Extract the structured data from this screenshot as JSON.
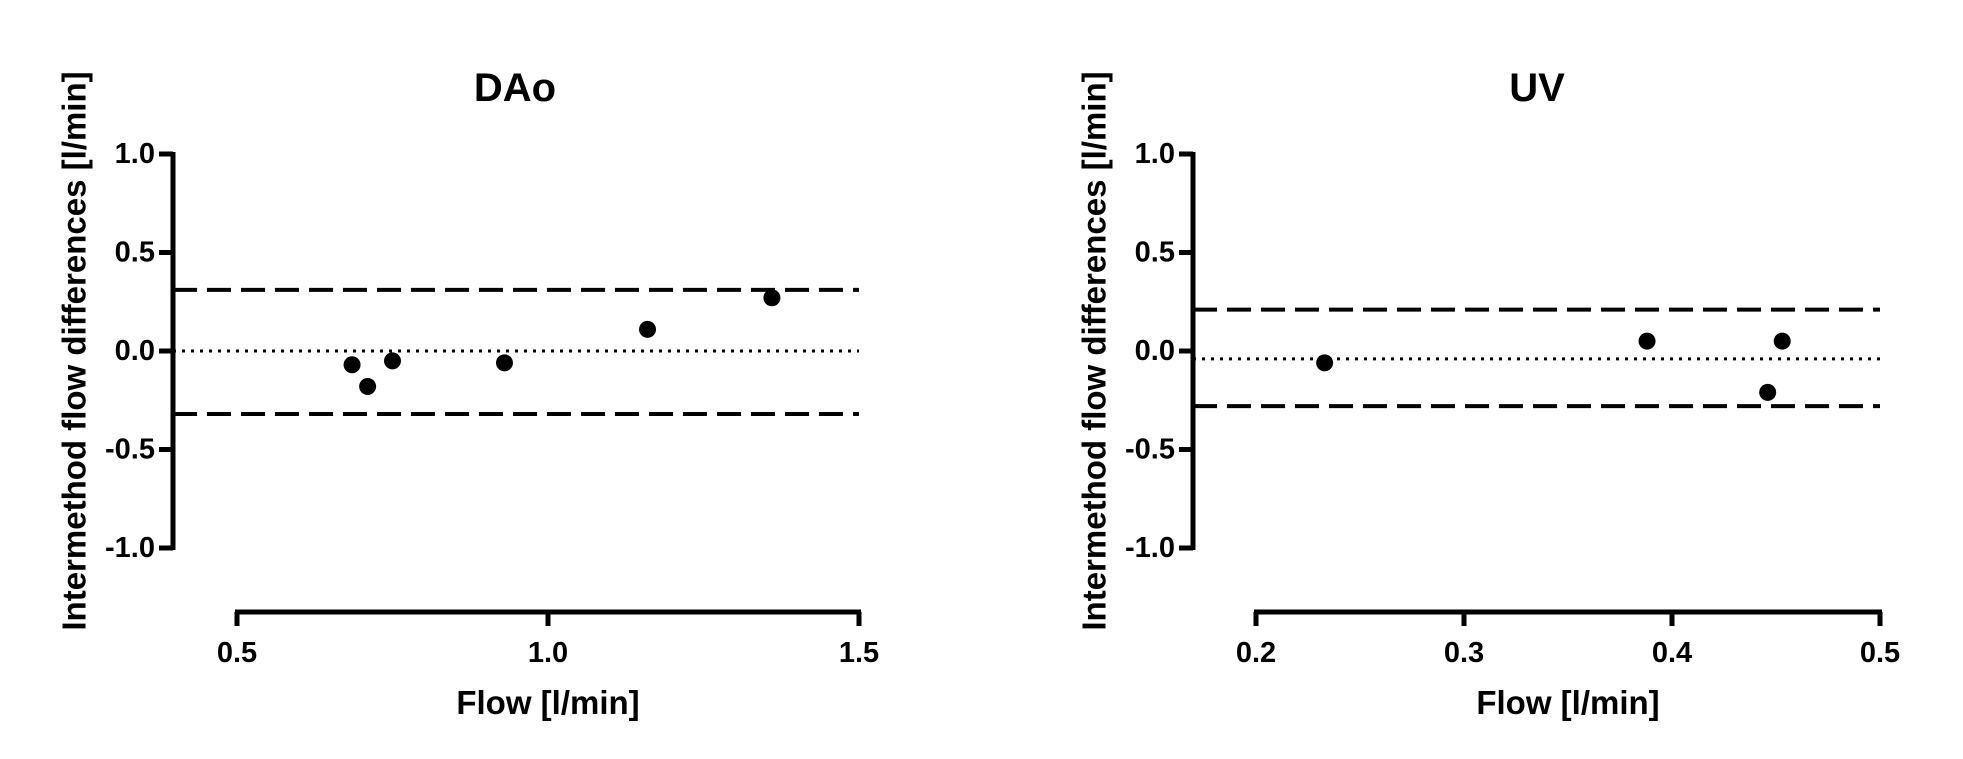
{
  "chart_data": [
    {
      "type": "scatter",
      "title": "DAo",
      "xlabel": "Flow [l/min]",
      "ylabel": "Intermethod flow differences [l/min]",
      "xlim": [
        0.5,
        1.5
      ],
      "ylim": [
        -1.0,
        1.0
      ],
      "xticks": [
        0.5,
        1.0,
        1.5
      ],
      "xtick_labels": [
        "0.5",
        "1.0",
        "1.5"
      ],
      "yticks": [
        1.0,
        0.5,
        0.0,
        -0.5,
        -1.0
      ],
      "ytick_labels": [
        "1.0",
        "0.5",
        "0.0",
        "-0.5",
        "-1.0"
      ],
      "points": [
        {
          "x": 0.685,
          "y": -0.07
        },
        {
          "x": 0.71,
          "y": -0.18
        },
        {
          "x": 0.75,
          "y": -0.05
        },
        {
          "x": 0.93,
          "y": -0.06
        },
        {
          "x": 1.16,
          "y": 0.11
        },
        {
          "x": 1.36,
          "y": 0.27
        }
      ],
      "reference_lines": [
        {
          "role": "mean",
          "y": 0.0,
          "style": "dotted"
        },
        {
          "role": "upper-limit",
          "y": 0.31,
          "style": "dashed"
        },
        {
          "role": "lower-limit",
          "y": -0.32,
          "style": "dashed"
        }
      ],
      "grid": false,
      "legend": "none"
    },
    {
      "type": "scatter",
      "title": "UV",
      "xlabel": "Flow [l/min]",
      "ylabel": "Intermethod flow differences [l/min]",
      "xlim": [
        0.2,
        0.5
      ],
      "ylim": [
        -1.0,
        1.0
      ],
      "xticks": [
        0.2,
        0.3,
        0.4,
        0.5
      ],
      "xtick_labels": [
        "0.2",
        "0.3",
        "0.4",
        "0.5"
      ],
      "yticks": [
        1.0,
        0.5,
        0.0,
        -0.5,
        -1.0
      ],
      "ytick_labels": [
        "1.0",
        "0.5",
        "0.0",
        "-0.5",
        "-1.0"
      ],
      "points": [
        {
          "x": 0.233,
          "y": -0.06
        },
        {
          "x": 0.388,
          "y": 0.05
        },
        {
          "x": 0.446,
          "y": -0.21
        },
        {
          "x": 0.453,
          "y": 0.05
        }
      ],
      "reference_lines": [
        {
          "role": "mean",
          "y": -0.04,
          "style": "dotted"
        },
        {
          "role": "upper-limit",
          "y": 0.21,
          "style": "dashed"
        },
        {
          "role": "lower-limit",
          "y": -0.28,
          "style": "dashed"
        }
      ],
      "grid": false,
      "legend": "none"
    }
  ]
}
